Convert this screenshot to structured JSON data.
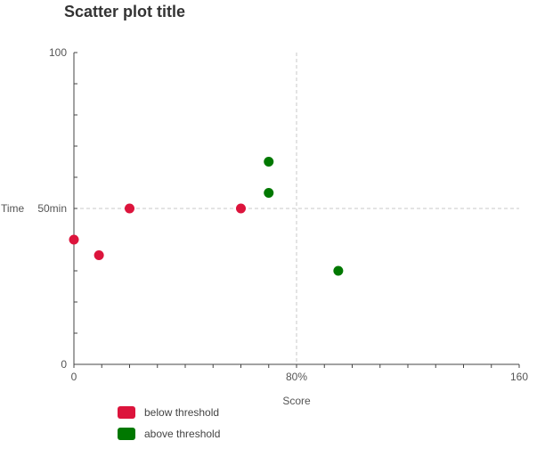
{
  "chart_data": {
    "type": "scatter",
    "title": "Scatter plot title",
    "xlabel": "Score",
    "ylabel": "Time",
    "xlim": [
      0,
      160
    ],
    "ylim": [
      0,
      100
    ],
    "x_tick_labels": [
      "0",
      "80%",
      "160"
    ],
    "y_tick_labels": [
      "0",
      "50min",
      "100"
    ],
    "reference_lines": {
      "x": 80,
      "y": 50
    },
    "grid": false,
    "legend_position": "bottom-left",
    "series": [
      {
        "name": "below threshold",
        "color": "#dc143c",
        "points": [
          [
            0,
            40
          ],
          [
            9,
            35
          ],
          [
            20,
            50
          ],
          [
            60,
            50
          ]
        ]
      },
      {
        "name": "above threshold",
        "color": "#007800",
        "points": [
          [
            70,
            65
          ],
          [
            70,
            55
          ],
          [
            95,
            30
          ]
        ]
      }
    ]
  }
}
